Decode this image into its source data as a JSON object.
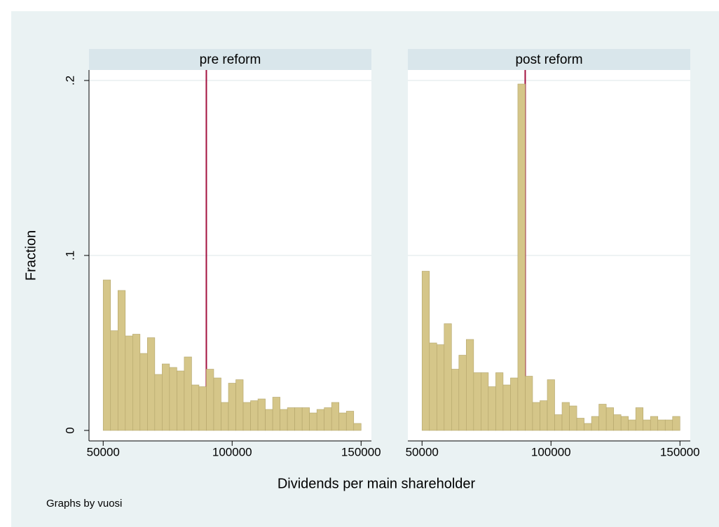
{
  "figure": {
    "ylabel": "Fraction",
    "xlabel": "Dividends per main shareholder",
    "note": "Graphs by vuosi"
  },
  "chart_data": [
    {
      "type": "histogram",
      "title": "pre reform",
      "color": "#d5c689",
      "edge_color": "#b3a46a",
      "show_yaxis": true,
      "bins": [
        50000,
        52857,
        55714,
        58571,
        61429,
        64286,
        67143,
        70000,
        72857,
        75714,
        78571,
        81429,
        84286,
        87143,
        90000,
        92857,
        95714,
        98571,
        101429,
        104286,
        107143,
        110000,
        112857,
        115714,
        118571,
        121429,
        124286,
        127143,
        130000,
        132857,
        135714,
        138571,
        141429,
        144286,
        147143,
        150000
      ],
      "values": [
        0.086,
        0.057,
        0.08,
        0.054,
        0.055,
        0.044,
        0.053,
        0.032,
        0.038,
        0.036,
        0.034,
        0.042,
        0.026,
        0.025,
        0.035,
        0.03,
        0.016,
        0.027,
        0.029,
        0.016,
        0.017,
        0.018,
        0.012,
        0.019,
        0.012,
        0.013,
        0.013,
        0.013,
        0.01,
        0.012,
        0.013,
        0.016,
        0.01,
        0.011,
        0.004
      ],
      "xline": 90000,
      "xline_color": "#a3113f",
      "xlim": [
        44500,
        154000
      ],
      "xticks": [
        50000,
        100000,
        150000
      ],
      "ylim": [
        -0.006,
        0.206
      ],
      "yticks": [
        0,
        {
          "value": 0.1,
          "label": ".1"
        },
        {
          "value": 0.2,
          "label": ".2"
        }
      ],
      "grid": true
    },
    {
      "type": "histogram",
      "title": "post reform",
      "color": "#d5c689",
      "edge_color": "#b3a46a",
      "show_yaxis": false,
      "bins": [
        50000,
        52857,
        55714,
        58571,
        61429,
        64286,
        67143,
        70000,
        72857,
        75714,
        78571,
        81429,
        84286,
        87143,
        90000,
        92857,
        95714,
        98571,
        101429,
        104286,
        107143,
        110000,
        112857,
        115714,
        118571,
        121429,
        124286,
        127143,
        130000,
        132857,
        135714,
        138571,
        141429,
        144286,
        147143,
        150000
      ],
      "values": [
        0.091,
        0.05,
        0.049,
        0.061,
        0.035,
        0.043,
        0.052,
        0.033,
        0.033,
        0.025,
        0.033,
        0.026,
        0.03,
        0.198,
        0.031,
        0.016,
        0.017,
        0.029,
        0.009,
        0.016,
        0.014,
        0.007,
        0.004,
        0.008,
        0.015,
        0.013,
        0.009,
        0.008,
        0.006,
        0.013,
        0.006,
        0.008,
        0.006,
        0.006,
        0.008
      ],
      "xline": 90000,
      "xline_color": "#a3113f",
      "xlim": [
        44500,
        154000
      ],
      "xticks": [
        50000,
        100000,
        150000
      ],
      "ylim": [
        -0.006,
        0.206
      ],
      "yticks": [
        0,
        {
          "value": 0.1,
          "label": ".1"
        },
        {
          "value": 0.2,
          "label": ".2"
        }
      ],
      "grid": true
    }
  ]
}
